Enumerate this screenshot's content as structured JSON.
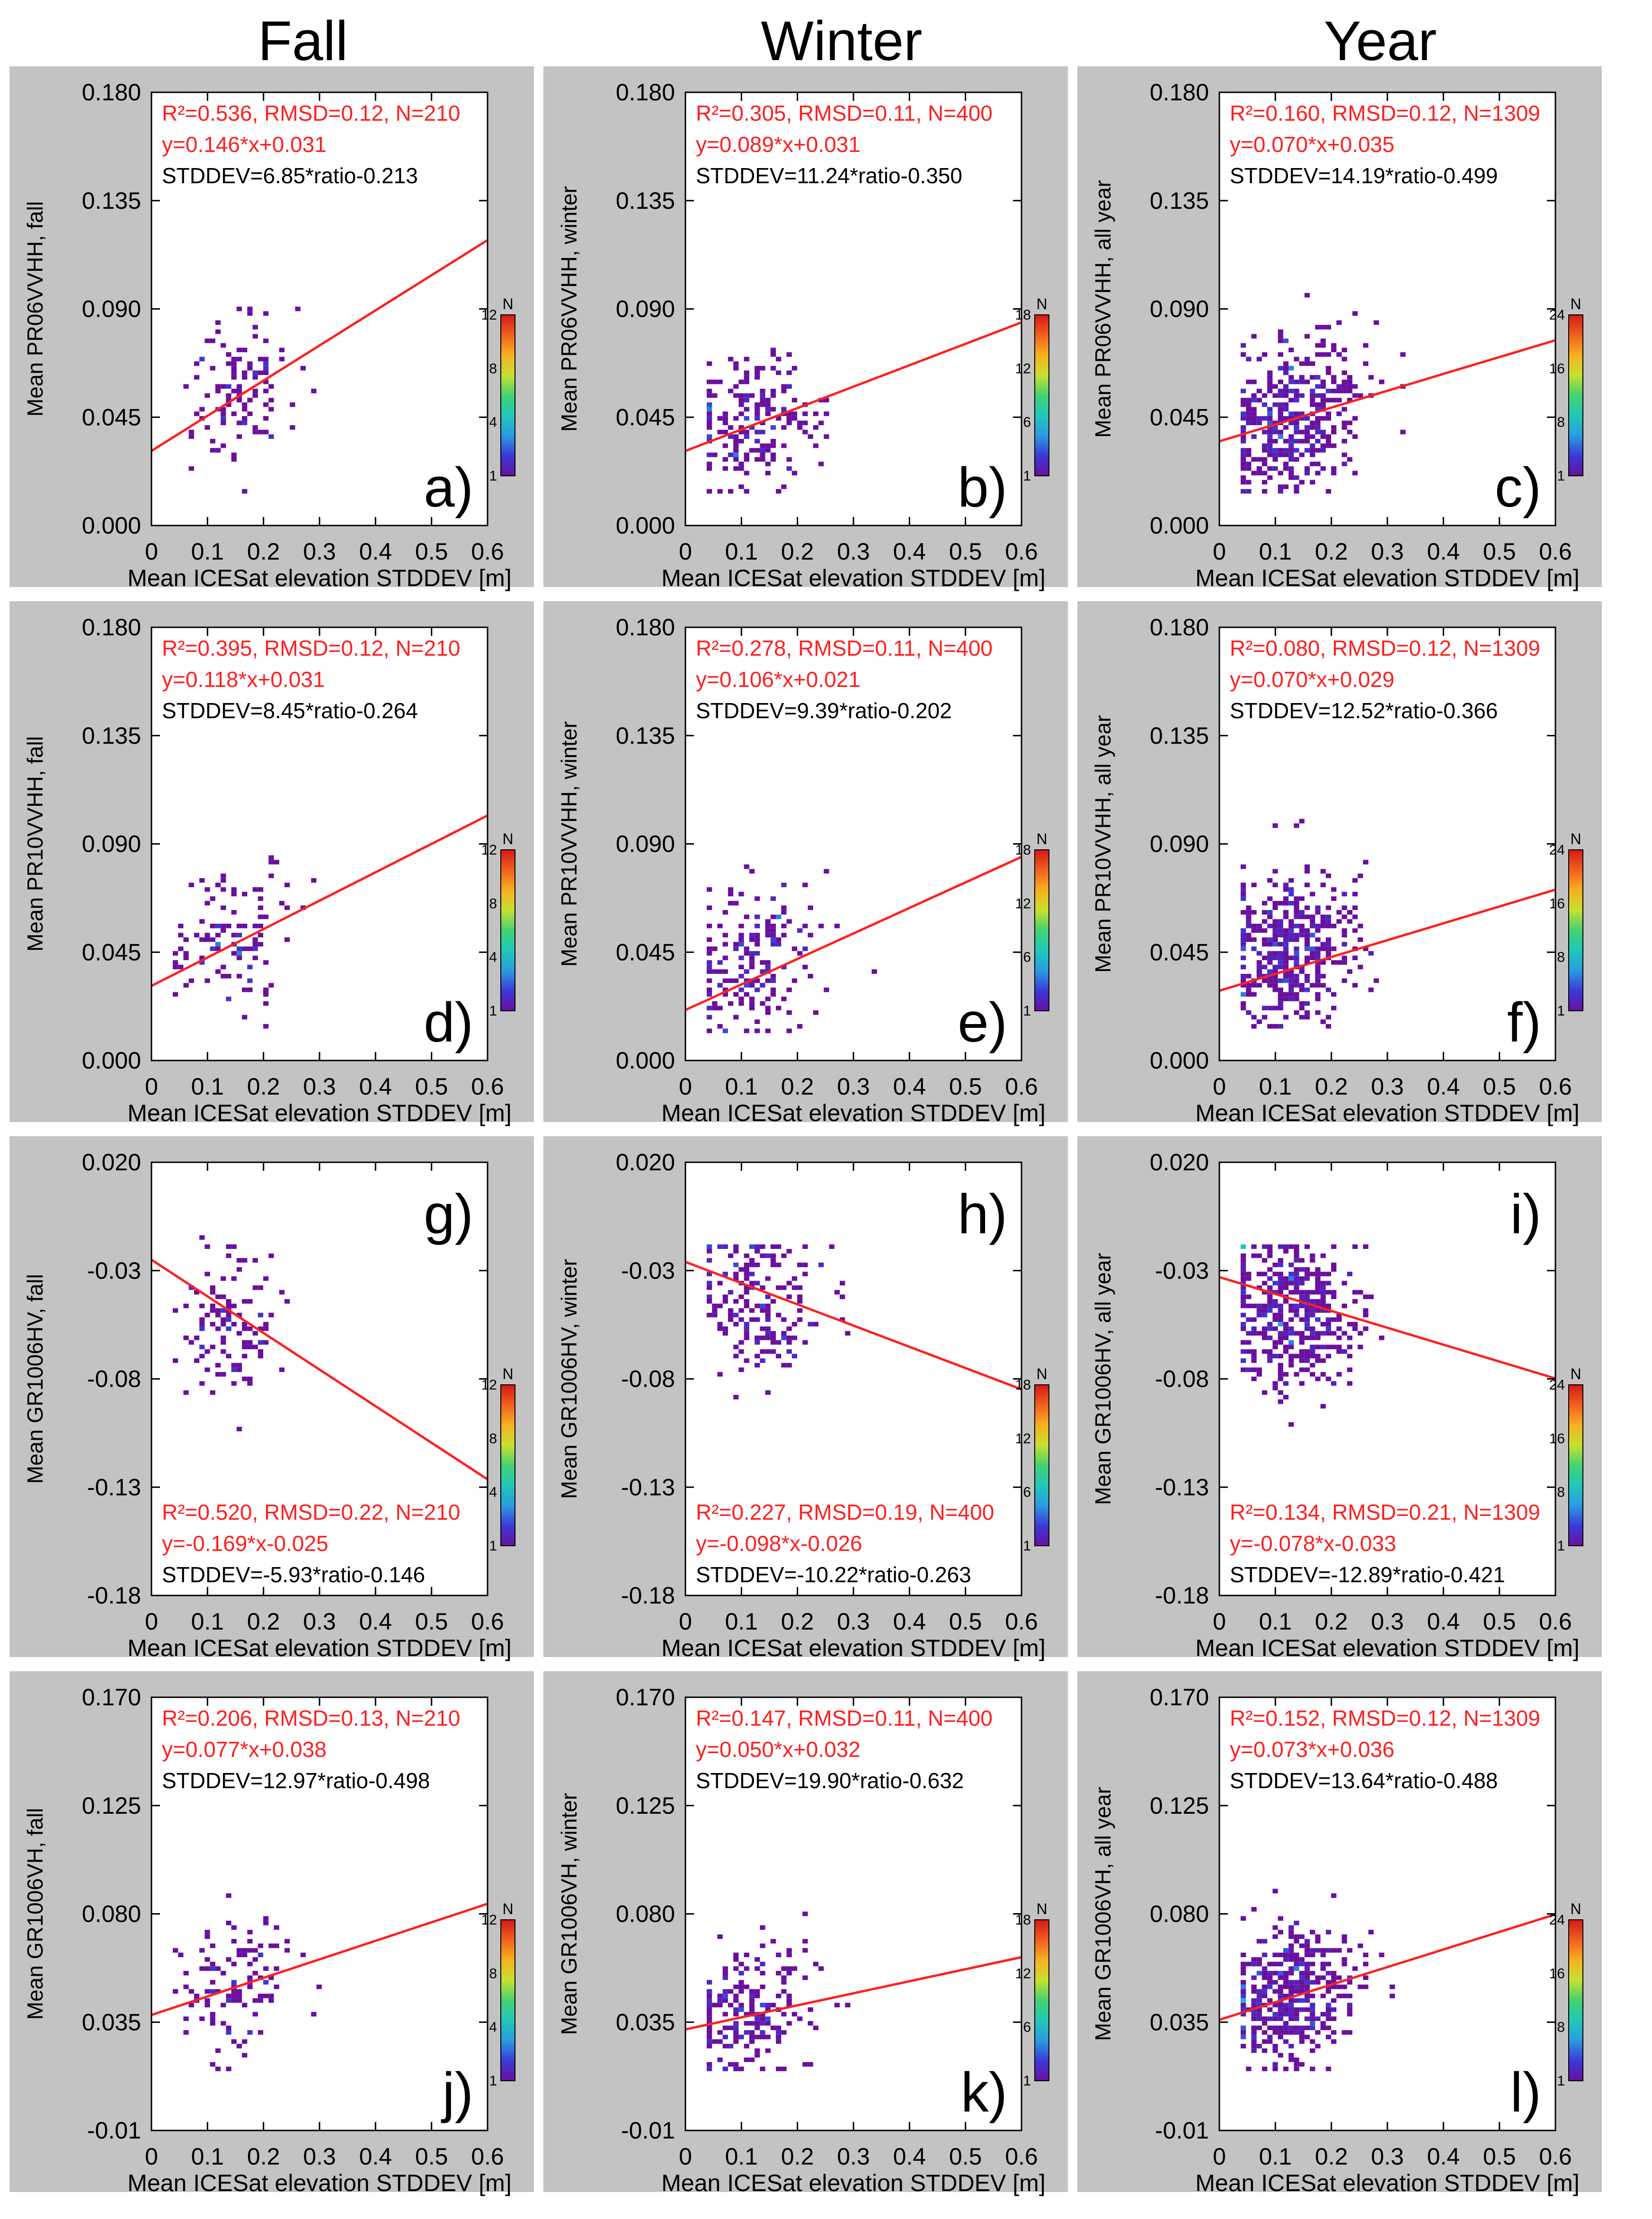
{
  "columns": [
    "Fall",
    "Winter",
    "Year"
  ],
  "colors": {
    "panel_bg": "#c3c3c3",
    "plot_bg": "#ffffff",
    "fit_line": "#ff2020",
    "stats_red": "#ff2020",
    "stats_black": "#000000"
  },
  "colorbar": {
    "label": "N",
    "gradient": [
      "#6a0f9e",
      "#3a3ad8",
      "#2b9be0",
      "#20c8b8",
      "#44d270",
      "#c8e030",
      "#f7b020",
      "#f06020",
      "#d41818"
    ],
    "fall": {
      "max": 12,
      "ticks": [
        "1",
        "4",
        "8",
        "12"
      ]
    },
    "winter": {
      "max": 18,
      "ticks": [
        "1",
        "6",
        "12",
        "18"
      ]
    },
    "year": {
      "max": 24,
      "ticks": [
        "1",
        "8",
        "16",
        "24"
      ]
    }
  },
  "chart_data": [
    {
      "type": "heatmap",
      "panel": "a)",
      "season": "fall",
      "xlabel": "Mean ICESat elevation STDDEV [m]",
      "ylabel": "Mean PR06VVHH, fall",
      "xlim": [
        0,
        0.6
      ],
      "ylim": [
        0,
        0.18
      ],
      "xticks": [
        "0",
        "0.1",
        "0.2",
        "0.3",
        "0.4",
        "0.5",
        "0.6"
      ],
      "yticks": [
        "0.000",
        "0.045",
        "0.090",
        "0.135",
        "0.180"
      ],
      "stats": [
        "R²=0.536, RMSD=0.12, N=210",
        "y=0.146*x+0.031",
        "STDDEV=6.85*ratio-0.213"
      ],
      "stats_pos": "top",
      "fit": {
        "slope": 0.146,
        "intercept": 0.031
      },
      "cloud": {
        "cx": 0.15,
        "cy": 0.055,
        "sx": 0.07,
        "sy": 0.015,
        "xmin": 0.04,
        "xmax": 0.36,
        "ymin": 0.015,
        "ymax": 0.09,
        "n": 110
      }
    },
    {
      "type": "heatmap",
      "panel": "b)",
      "season": "winter",
      "xlabel": "Mean ICESat elevation STDDEV [m]",
      "ylabel": "Mean PR06VVHH, winter",
      "xlim": [
        0,
        0.6
      ],
      "ylim": [
        0,
        0.18
      ],
      "xticks": [
        "0",
        "0.1",
        "0.2",
        "0.3",
        "0.4",
        "0.5",
        "0.6"
      ],
      "yticks": [
        "0.000",
        "0.045",
        "0.090",
        "0.135",
        "0.180"
      ],
      "stats": [
        "R²=0.305, RMSD=0.11, N=400",
        "y=0.089*x+0.031",
        "STDDEV=11.24*ratio-0.350"
      ],
      "stats_pos": "top",
      "fit": {
        "slope": 0.089,
        "intercept": 0.031
      },
      "cloud": {
        "cx": 0.12,
        "cy": 0.042,
        "sx": 0.07,
        "sy": 0.013,
        "xmin": 0.04,
        "xmax": 0.35,
        "ymin": 0.015,
        "ymax": 0.115,
        "n": 190
      }
    },
    {
      "type": "heatmap",
      "panel": "c)",
      "season": "year",
      "xlabel": "Mean ICESat elevation STDDEV [m]",
      "ylabel": "Mean PR06VVHH, all year",
      "xlim": [
        0,
        0.6
      ],
      "ylim": [
        0,
        0.18
      ],
      "xticks": [
        "0",
        "0.1",
        "0.2",
        "0.3",
        "0.4",
        "0.5",
        "0.6"
      ],
      "yticks": [
        "0.000",
        "0.045",
        "0.090",
        "0.135",
        "0.180"
      ],
      "stats": [
        "R²=0.160, RMSD=0.12, N=1309",
        "y=0.070*x+0.035",
        "STDDEV=14.19*ratio-0.499"
      ],
      "stats_pos": "top",
      "fit": {
        "slope": 0.07,
        "intercept": 0.035
      },
      "cloud": {
        "cx": 0.13,
        "cy": 0.046,
        "sx": 0.075,
        "sy": 0.015,
        "xmin": 0.04,
        "xmax": 0.42,
        "ymin": 0.015,
        "ymax": 0.105,
        "n": 420
      }
    },
    {
      "type": "heatmap",
      "panel": "d)",
      "season": "fall",
      "xlabel": "Mean ICESat elevation STDDEV [m]",
      "ylabel": "Mean PR10VVHH, fall",
      "xlim": [
        0,
        0.6
      ],
      "ylim": [
        0,
        0.18
      ],
      "xticks": [
        "0",
        "0.1",
        "0.2",
        "0.3",
        "0.4",
        "0.5",
        "0.6"
      ],
      "yticks": [
        "0.000",
        "0.045",
        "0.090",
        "0.135",
        "0.180"
      ],
      "stats": [
        "R²=0.395, RMSD=0.12, N=210",
        "y=0.118*x+0.031",
        "STDDEV=8.45*ratio-0.264"
      ],
      "stats_pos": "top",
      "fit": {
        "slope": 0.118,
        "intercept": 0.031
      },
      "cloud": {
        "cx": 0.15,
        "cy": 0.052,
        "sx": 0.07,
        "sy": 0.015,
        "xmin": 0.04,
        "xmax": 0.36,
        "ymin": 0.015,
        "ymax": 0.13,
        "n": 110
      }
    },
    {
      "type": "heatmap",
      "panel": "e)",
      "season": "winter",
      "xlabel": "Mean ICESat elevation STDDEV [m]",
      "ylabel": "Mean PR10VVHH, winter",
      "xlim": [
        0,
        0.6
      ],
      "ylim": [
        0,
        0.18
      ],
      "xticks": [
        "0",
        "0.1",
        "0.2",
        "0.3",
        "0.4",
        "0.5",
        "0.6"
      ],
      "yticks": [
        "0.000",
        "0.045",
        "0.090",
        "0.135",
        "0.180"
      ],
      "stats": [
        "R²=0.278, RMSD=0.11, N=400",
        "y=0.106*x+0.021",
        "STDDEV=9.39*ratio-0.202"
      ],
      "stats_pos": "top",
      "fit": {
        "slope": 0.106,
        "intercept": 0.021
      },
      "cloud": {
        "cx": 0.12,
        "cy": 0.04,
        "sx": 0.07,
        "sy": 0.014,
        "xmin": 0.04,
        "xmax": 0.35,
        "ymin": 0.012,
        "ymax": 0.13,
        "n": 190
      }
    },
    {
      "type": "heatmap",
      "panel": "f)",
      "season": "year",
      "xlabel": "Mean ICESat elevation STDDEV [m]",
      "ylabel": "Mean PR10VVHH, all year",
      "xlim": [
        0,
        0.6
      ],
      "ylim": [
        0,
        0.18
      ],
      "xticks": [
        "0",
        "0.1",
        "0.2",
        "0.3",
        "0.4",
        "0.5",
        "0.6"
      ],
      "yticks": [
        "0.000",
        "0.045",
        "0.090",
        "0.135",
        "0.180"
      ],
      "stats": [
        "R²=0.080, RMSD=0.12, N=1309",
        "y=0.070*x+0.029",
        "STDDEV=12.52*ratio-0.366"
      ],
      "stats_pos": "top",
      "fit": {
        "slope": 0.07,
        "intercept": 0.029
      },
      "cloud": {
        "cx": 0.13,
        "cy": 0.046,
        "sx": 0.075,
        "sy": 0.016,
        "xmin": 0.04,
        "xmax": 0.42,
        "ymin": 0.015,
        "ymax": 0.11,
        "n": 420
      }
    },
    {
      "type": "heatmap",
      "panel": "g)",
      "season": "fall",
      "xlabel": "Mean ICESat elevation STDDEV [m]",
      "ylabel": "Mean GR1006HV, fall",
      "xlim": [
        0,
        0.6
      ],
      "ylim": [
        -0.18,
        0.02
      ],
      "xticks": [
        "0",
        "0.1",
        "0.2",
        "0.3",
        "0.4",
        "0.5",
        "0.6"
      ],
      "yticks": [
        "-0.18",
        "-0.13",
        "-0.08",
        "-0.03",
        "0.020"
      ],
      "stats": [
        "R²=0.520, RMSD=0.22, N=210",
        "y=-0.169*x-0.025",
        "STDDEV=-5.93*ratio-0.146"
      ],
      "stats_pos": "bottom",
      "fit": {
        "slope": -0.169,
        "intercept": -0.025
      },
      "cloud": {
        "cx": 0.15,
        "cy": -0.055,
        "sx": 0.07,
        "sy": 0.017,
        "xmin": 0.04,
        "xmax": 0.36,
        "ymin": -0.12,
        "ymax": -0.015,
        "n": 110
      }
    },
    {
      "type": "heatmap",
      "panel": "h)",
      "season": "winter",
      "xlabel": "Mean ICESat elevation STDDEV [m]",
      "ylabel": "Mean GR1006HV, winter",
      "xlim": [
        0,
        0.6
      ],
      "ylim": [
        -0.18,
        0.02
      ],
      "xticks": [
        "0",
        "0.1",
        "0.2",
        "0.3",
        "0.4",
        "0.5",
        "0.6"
      ],
      "yticks": [
        "-0.18",
        "-0.13",
        "-0.08",
        "-0.03",
        "0.020"
      ],
      "stats": [
        "R²=0.227, RMSD=0.19, N=400",
        "y=-0.098*x-0.026",
        "STDDEV=-10.22*ratio-0.263"
      ],
      "stats_pos": "bottom",
      "fit": {
        "slope": -0.098,
        "intercept": -0.026
      },
      "cloud": {
        "cx": 0.13,
        "cy": -0.045,
        "sx": 0.07,
        "sy": 0.017,
        "xmin": 0.04,
        "xmax": 0.35,
        "ymin": -0.13,
        "ymax": -0.018,
        "n": 190
      }
    },
    {
      "type": "heatmap",
      "panel": "i)",
      "season": "year",
      "xlabel": "Mean ICESat elevation STDDEV [m]",
      "ylabel": "Mean GR1006HV, all year",
      "xlim": [
        0,
        0.6
      ],
      "ylim": [
        -0.18,
        0.02
      ],
      "xticks": [
        "0",
        "0.1",
        "0.2",
        "0.3",
        "0.4",
        "0.5",
        "0.6"
      ],
      "yticks": [
        "-0.18",
        "-0.13",
        "-0.08",
        "-0.03",
        "0.020"
      ],
      "stats": [
        "R²=0.134, RMSD=0.21, N=1309",
        "y=-0.078*x-0.033",
        "STDDEV=-12.89*ratio-0.421"
      ],
      "stats_pos": "bottom",
      "fit": {
        "slope": -0.078,
        "intercept": -0.033
      },
      "cloud": {
        "cx": 0.13,
        "cy": -0.05,
        "sx": 0.075,
        "sy": 0.017,
        "xmin": 0.04,
        "xmax": 0.42,
        "ymin": -0.115,
        "ymax": -0.018,
        "n": 420
      }
    },
    {
      "type": "heatmap",
      "panel": "j)",
      "season": "fall",
      "xlabel": "Mean ICESat elevation STDDEV [m]",
      "ylabel": "Mean GR1006VH, fall",
      "xlim": [
        0,
        0.6
      ],
      "ylim": [
        -0.01,
        0.17
      ],
      "xticks": [
        "0",
        "0.1",
        "0.2",
        "0.3",
        "0.4",
        "0.5",
        "0.6"
      ],
      "yticks": [
        "-0.01",
        "0.035",
        "0.080",
        "0.125",
        "0.170"
      ],
      "stats": [
        "R²=0.206, RMSD=0.13, N=210",
        "y=0.077*x+0.038",
        "STDDEV=12.97*ratio-0.498"
      ],
      "stats_pos": "top",
      "fit": {
        "slope": 0.077,
        "intercept": 0.038
      },
      "cloud": {
        "cx": 0.15,
        "cy": 0.05,
        "sx": 0.07,
        "sy": 0.014,
        "xmin": 0.04,
        "xmax": 0.36,
        "ymin": 0.015,
        "ymax": 0.09,
        "n": 110
      }
    },
    {
      "type": "heatmap",
      "panel": "k)",
      "season": "winter",
      "xlabel": "Mean ICESat elevation STDDEV [m]",
      "ylabel": "Mean GR1006VH, winter",
      "xlim": [
        0,
        0.6
      ],
      "ylim": [
        -0.01,
        0.17
      ],
      "xticks": [
        "0",
        "0.1",
        "0.2",
        "0.3",
        "0.4",
        "0.5",
        "0.6"
      ],
      "yticks": [
        "-0.01",
        "0.035",
        "0.080",
        "0.125",
        "0.170"
      ],
      "stats": [
        "R²=0.147, RMSD=0.11, N=400",
        "y=0.050*x+0.032",
        "STDDEV=19.90*ratio-0.632"
      ],
      "stats_pos": "top",
      "fit": {
        "slope": 0.05,
        "intercept": 0.032
      },
      "cloud": {
        "cx": 0.12,
        "cy": 0.04,
        "sx": 0.07,
        "sy": 0.013,
        "xmin": 0.04,
        "xmax": 0.35,
        "ymin": 0.015,
        "ymax": 0.11,
        "n": 190
      }
    },
    {
      "type": "heatmap",
      "panel": "l)",
      "season": "year",
      "xlabel": "Mean ICESat elevation STDDEV [m]",
      "ylabel": "Mean GR1006VH, all year",
      "xlim": [
        0,
        0.6
      ],
      "ylim": [
        -0.01,
        0.17
      ],
      "xticks": [
        "0",
        "0.1",
        "0.2",
        "0.3",
        "0.4",
        "0.5",
        "0.6"
      ],
      "yticks": [
        "-0.01",
        "0.035",
        "0.080",
        "0.125",
        "0.170"
      ],
      "stats": [
        "R²=0.152, RMSD=0.12, N=1309",
        "y=0.073*x+0.036",
        "STDDEV=13.64*ratio-0.488"
      ],
      "stats_pos": "top",
      "fit": {
        "slope": 0.073,
        "intercept": 0.036
      },
      "cloud": {
        "cx": 0.13,
        "cy": 0.048,
        "sx": 0.075,
        "sy": 0.014,
        "xmin": 0.04,
        "xmax": 0.42,
        "ymin": 0.015,
        "ymax": 0.1,
        "n": 420
      }
    }
  ]
}
